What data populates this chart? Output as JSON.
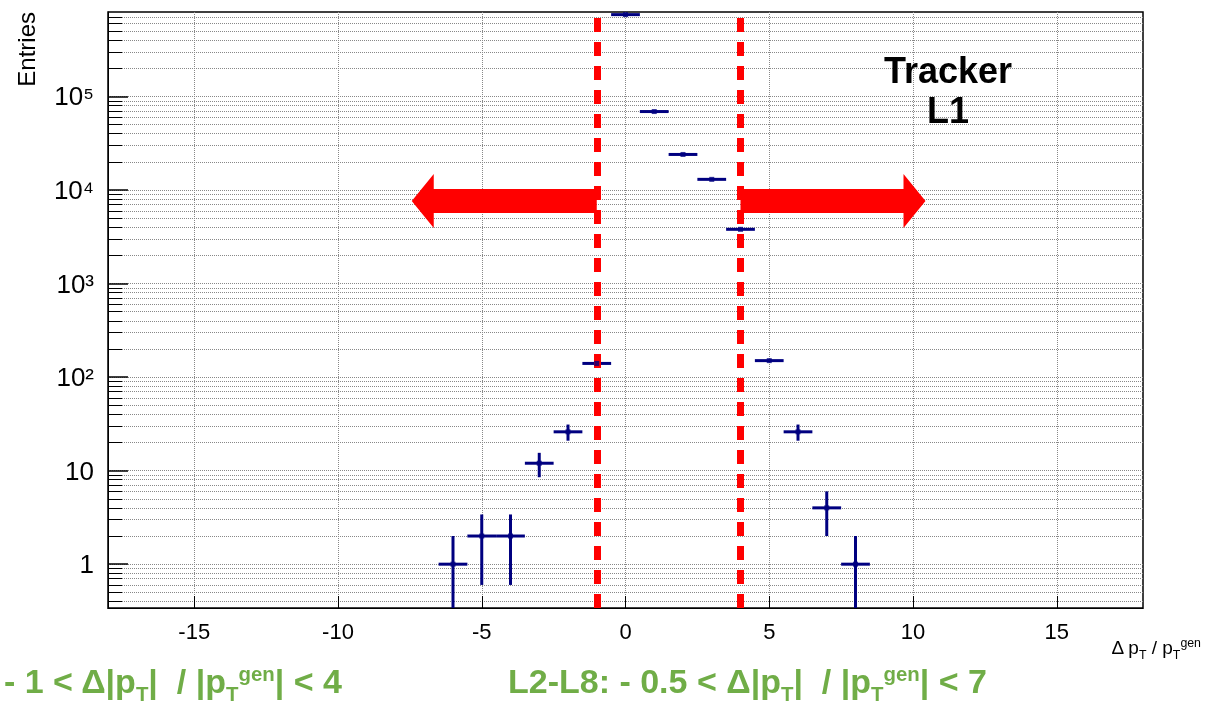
{
  "chart_data": {
    "type": "scatter",
    "ylabel": "Entries",
    "xlabel": "Δ p$_{T}$ / p$_{T}$$^{gen}$",
    "x": [
      -6,
      -5,
      -4,
      -3,
      -2,
      -1,
      0,
      1,
      2,
      3,
      4,
      5,
      6,
      7,
      8
    ],
    "values": [
      1,
      2,
      2,
      12,
      26,
      140,
      750000,
      69000,
      24000,
      13000,
      3800,
      150,
      26,
      4,
      1
    ],
    "errors": [
      [
        0.34,
        2
      ],
      1.4,
      1.4,
      3.5,
      5.1,
      null,
      null,
      null,
      null,
      null,
      null,
      null,
      5.1,
      2,
      [
        0.34,
        2
      ]
    ],
    "xerrors": [
      0.5,
      0.5,
      0.5,
      0.5,
      0.5,
      0.5,
      0.5,
      0.5,
      0.5,
      0.5,
      0.5,
      0.5,
      0.5,
      0.5,
      0.5
    ],
    "color": "#000080",
    "marker": "square",
    "xlim": [
      -18,
      18
    ],
    "xticks": [
      -15,
      -10,
      -5,
      0,
      5,
      10,
      15
    ],
    "ylim": [
      0.34,
      800000
    ],
    "yticks": [
      1,
      10,
      {
        "value": 100,
        "label": "10²"
      },
      {
        "value": 1000,
        "label": "10³"
      },
      {
        "value": 10000,
        "label": "10⁴"
      },
      {
        "value": 100000,
        "label": "10⁵"
      }
    ],
    "log": true,
    "grid": true,
    "legend": false,
    "ref_lines": [
      {
        "axis": "x",
        "value": -1,
        "color": "#ff0000",
        "line_style": "dashed"
      },
      {
        "axis": "x",
        "value": 4,
        "color": "#ff0000",
        "line_style": "dashed"
      }
    ],
    "annotations": [
      "Tracker\nL1",
      "- 1 < Δ|p$_{T}$|  / |p$_{T}$$^{gen}$| < 4",
      "L2-L8: - 0.5 < Δ|p$_{T}$|  / |p$_{T}$$^{gen}$| < 7"
    ]
  }
}
